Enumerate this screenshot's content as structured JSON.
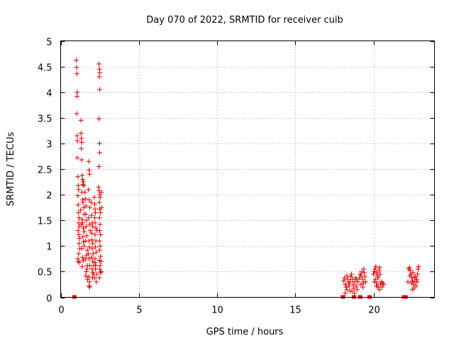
{
  "chart_data": {
    "type": "scatter",
    "title": "Day 070 of 2022, SRMTID for receiver cuib",
    "xlabel": "GPS time / hours",
    "ylabel": "SRMTID / TECUs",
    "xlim": [
      0,
      23.9
    ],
    "ylim": [
      0,
      5
    ],
    "xticks": [
      0,
      5,
      10,
      15,
      20
    ],
    "xtick_labels": [
      "0",
      "5",
      "10",
      "15",
      "20"
    ],
    "yticks": [
      0,
      0.5,
      1,
      1.5,
      2,
      2.5,
      3,
      3.5,
      4,
      4.5,
      5
    ],
    "ytick_labels": [
      "0",
      "0.5",
      "1",
      "1.5",
      "2",
      "2.5",
      "3",
      "3.5",
      "4",
      "4.5",
      "5"
    ],
    "grid": true,
    "legend": "none",
    "colors": {
      "series": "#e00000",
      "grid": "#a0a0a0",
      "axis": "#000000"
    },
    "series": [
      {
        "name": "SRMTID",
        "marker": "plus",
        "color": "#e00000",
        "points": [
          [
            1.0,
            4.62
          ],
          [
            1.02,
            4.48
          ],
          [
            1.04,
            4.36
          ],
          [
            1.06,
            4.0
          ],
          [
            1.05,
            3.92
          ],
          [
            1.03,
            3.58
          ],
          [
            1.05,
            3.15
          ],
          [
            1.07,
            3.05
          ],
          [
            1.06,
            2.72
          ],
          [
            1.1,
            2.35
          ],
          [
            1.12,
            2.18
          ],
          [
            1.15,
            2.1
          ],
          [
            1.1,
            1.98
          ],
          [
            1.12,
            1.8
          ],
          [
            1.14,
            1.65
          ],
          [
            1.18,
            1.55
          ],
          [
            1.15,
            1.45
          ],
          [
            1.2,
            1.38
          ],
          [
            1.12,
            1.3
          ],
          [
            1.16,
            1.22
          ],
          [
            1.2,
            1.15
          ],
          [
            1.18,
            1.05
          ],
          [
            1.22,
            0.95
          ],
          [
            1.15,
            0.85
          ],
          [
            1.1,
            0.75
          ],
          [
            1.12,
            0.7
          ],
          [
            1.2,
            0.68
          ],
          [
            1.3,
            3.2
          ],
          [
            1.33,
            3.1
          ],
          [
            1.35,
            3.02
          ],
          [
            1.32,
            2.9
          ],
          [
            1.34,
            2.68
          ],
          [
            1.38,
            2.38
          ],
          [
            1.4,
            2.3
          ],
          [
            1.42,
            2.2
          ],
          [
            1.45,
            2.25
          ],
          [
            1.48,
            2.18
          ],
          [
            1.36,
            2.05
          ],
          [
            1.4,
            1.9
          ],
          [
            1.43,
            1.85
          ],
          [
            1.48,
            1.75
          ],
          [
            1.5,
            1.62
          ],
          [
            1.38,
            1.52
          ],
          [
            1.4,
            1.45
          ],
          [
            1.45,
            1.35
          ],
          [
            1.5,
            1.28
          ],
          [
            1.42,
            1.18
          ],
          [
            1.46,
            1.08
          ],
          [
            1.5,
            1.0
          ],
          [
            1.35,
            0.95
          ],
          [
            1.4,
            0.78
          ],
          [
            1.45,
            0.72
          ],
          [
            1.38,
            0.6
          ],
          [
            1.3,
            3.45
          ],
          [
            1.28,
            1.7
          ],
          [
            1.32,
            1.42
          ],
          [
            1.55,
            2.05
          ],
          [
            1.58,
            1.92
          ],
          [
            1.62,
            1.78
          ],
          [
            1.6,
            1.62
          ],
          [
            1.65,
            1.5
          ],
          [
            1.62,
            1.38
          ],
          [
            1.68,
            1.2
          ],
          [
            1.6,
            1.1
          ],
          [
            1.7,
            0.92
          ],
          [
            1.66,
            0.82
          ],
          [
            1.6,
            0.75
          ],
          [
            1.7,
            0.62
          ],
          [
            1.65,
            0.5
          ],
          [
            1.6,
            0.42
          ],
          [
            1.72,
            0.35
          ],
          [
            1.68,
            0.55
          ],
          [
            1.8,
            2.65
          ],
          [
            1.82,
            2.48
          ],
          [
            1.85,
            2.4
          ],
          [
            1.78,
            2.1
          ],
          [
            1.82,
            1.9
          ],
          [
            1.86,
            1.75
          ],
          [
            1.8,
            1.55
          ],
          [
            1.84,
            1.42
          ],
          [
            1.88,
            1.3
          ],
          [
            1.8,
            1.1
          ],
          [
            1.84,
            0.98
          ],
          [
            1.78,
            0.85
          ],
          [
            1.82,
            0.75
          ],
          [
            1.86,
            0.62
          ],
          [
            1.8,
            0.4
          ],
          [
            1.84,
            0.3
          ],
          [
            1.82,
            0.22
          ],
          [
            1.85,
            0.2
          ],
          [
            1.95,
            1.85
          ],
          [
            1.98,
            1.6
          ],
          [
            2.02,
            1.45
          ],
          [
            2.05,
            1.38
          ],
          [
            1.98,
            1.25
          ],
          [
            2.0,
            1.12
          ],
          [
            2.05,
            1.05
          ],
          [
            2.02,
            0.95
          ],
          [
            2.08,
            0.85
          ],
          [
            1.98,
            0.78
          ],
          [
            2.05,
            0.7
          ],
          [
            2.1,
            0.62
          ],
          [
            2.0,
            0.55
          ],
          [
            2.06,
            0.48
          ],
          [
            2.1,
            0.45
          ],
          [
            2.04,
            0.38
          ],
          [
            2.15,
            1.95
          ],
          [
            2.18,
            1.82
          ],
          [
            2.2,
            1.72
          ],
          [
            2.22,
            1.65
          ],
          [
            2.18,
            1.55
          ],
          [
            2.2,
            1.45
          ],
          [
            2.25,
            1.35
          ],
          [
            2.2,
            1.22
          ],
          [
            2.25,
            1.1
          ],
          [
            2.22,
            0.98
          ],
          [
            2.28,
            0.88
          ],
          [
            2.2,
            0.75
          ],
          [
            2.25,
            0.62
          ],
          [
            2.22,
            0.55
          ],
          [
            2.3,
            0.45
          ],
          [
            2.18,
            0.38
          ],
          [
            2.28,
            0.3
          ],
          [
            2.2,
            0.68
          ],
          [
            2.32,
            1.3
          ],
          [
            2.45,
            4.55
          ],
          [
            2.48,
            4.45
          ],
          [
            2.5,
            4.38
          ],
          [
            2.47,
            4.3
          ],
          [
            2.5,
            4.05
          ],
          [
            2.45,
            3.48
          ],
          [
            2.48,
            3.0
          ],
          [
            2.5,
            2.82
          ],
          [
            2.45,
            2.55
          ],
          [
            2.42,
            2.15
          ],
          [
            2.46,
            2.08
          ],
          [
            2.5,
            2.0
          ],
          [
            2.52,
            1.95
          ],
          [
            2.48,
            1.85
          ],
          [
            2.5,
            1.72
          ],
          [
            2.55,
            1.65
          ],
          [
            2.48,
            1.55
          ],
          [
            2.52,
            1.42
          ],
          [
            2.5,
            1.3
          ],
          [
            2.55,
            1.22
          ],
          [
            2.48,
            1.1
          ],
          [
            2.52,
            1.0
          ],
          [
            2.5,
            0.92
          ],
          [
            2.55,
            0.8
          ],
          [
            2.48,
            0.72
          ],
          [
            2.52,
            0.62
          ],
          [
            2.5,
            0.55
          ],
          [
            2.55,
            0.48
          ],
          [
            2.48,
            0.38
          ],
          [
            2.6,
            2.05
          ],
          [
            2.62,
            1.75
          ],
          [
            2.58,
            0.7
          ],
          [
            2.6,
            0.5
          ],
          [
            18.1,
            0.32
          ],
          [
            18.15,
            0.38
          ],
          [
            18.2,
            0.25
          ],
          [
            18.25,
            0.2
          ],
          [
            18.3,
            0.15
          ],
          [
            18.18,
            0.08
          ],
          [
            18.35,
            0.35
          ],
          [
            18.4,
            0.28
          ],
          [
            18.45,
            0.22
          ],
          [
            18.5,
            0.3
          ],
          [
            18.55,
            0.4
          ],
          [
            18.6,
            0.45
          ],
          [
            18.65,
            0.35
          ],
          [
            18.7,
            0.25
          ],
          [
            18.75,
            0.18
          ],
          [
            18.8,
            0.3
          ],
          [
            18.85,
            0.38
          ],
          [
            18.9,
            0.22
          ],
          [
            18.95,
            0.15
          ],
          [
            19.0,
            0.3
          ],
          [
            18.62,
            0.12
          ],
          [
            18.78,
            0.08
          ],
          [
            18.92,
            0.35
          ],
          [
            18.3,
            0.42
          ],
          [
            18.5,
            0.12
          ],
          [
            19.1,
            0.38
          ],
          [
            19.15,
            0.45
          ],
          [
            19.2,
            0.42
          ],
          [
            19.25,
            0.5
          ],
          [
            19.3,
            0.35
          ],
          [
            19.35,
            0.28
          ],
          [
            19.4,
            0.48
          ],
          [
            19.45,
            0.4
          ],
          [
            19.5,
            0.3
          ],
          [
            19.2,
            0.25
          ],
          [
            19.38,
            0.55
          ],
          [
            19.32,
            0.2
          ],
          [
            20.0,
            0.45
          ],
          [
            20.05,
            0.5
          ],
          [
            20.1,
            0.55
          ],
          [
            20.15,
            0.6
          ],
          [
            20.2,
            0.48
          ],
          [
            20.25,
            0.42
          ],
          [
            20.3,
            0.38
          ],
          [
            20.35,
            0.52
          ],
          [
            20.4,
            0.58
          ],
          [
            20.12,
            0.35
          ],
          [
            20.22,
            0.28
          ],
          [
            20.3,
            0.2
          ],
          [
            20.38,
            0.15
          ],
          [
            20.45,
            0.25
          ],
          [
            20.5,
            0.3
          ],
          [
            20.55,
            0.2
          ],
          [
            20.6,
            0.28
          ],
          [
            20.65,
            0.25
          ],
          [
            20.05,
            0.3
          ],
          [
            20.18,
            0.22
          ],
          [
            20.42,
            0.45
          ],
          [
            22.2,
            0.3
          ],
          [
            22.25,
            0.55
          ],
          [
            22.3,
            0.58
          ],
          [
            22.35,
            0.52
          ],
          [
            22.4,
            0.45
          ],
          [
            22.45,
            0.38
          ],
          [
            22.5,
            0.32
          ],
          [
            22.55,
            0.25
          ],
          [
            22.6,
            0.18
          ],
          [
            22.65,
            0.3
          ],
          [
            22.7,
            0.4
          ],
          [
            22.75,
            0.35
          ],
          [
            22.8,
            0.3
          ],
          [
            22.85,
            0.55
          ],
          [
            22.88,
            0.6
          ],
          [
            22.32,
            0.42
          ],
          [
            22.42,
            0.28
          ],
          [
            22.52,
            0.48
          ],
          [
            22.62,
            0.4
          ],
          [
            22.72,
            0.22
          ],
          [
            22.82,
            0.45
          ],
          [
            22.48,
            0.15
          ]
        ],
        "zero_points": [
          0.88,
          18.05,
          18.75,
          19.15,
          19.75,
          21.95,
          22.05
        ]
      }
    ]
  }
}
